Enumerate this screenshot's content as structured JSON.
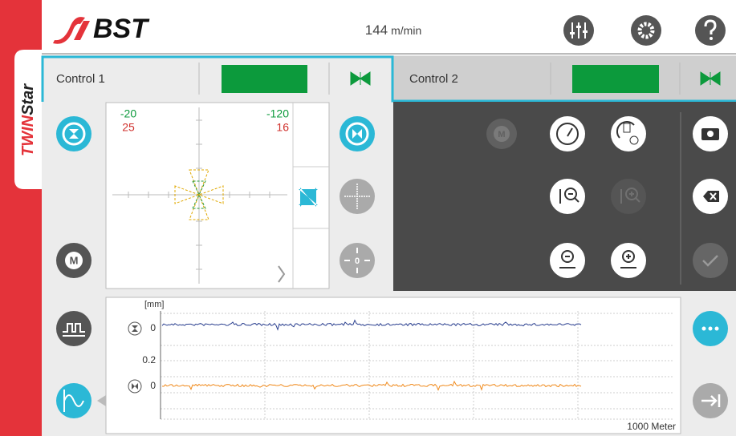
{
  "header": {
    "logo": "BST",
    "speed": "144",
    "speed_unit": "m/min"
  },
  "brand": {
    "part1": "TWIN",
    "part2": "Star"
  },
  "tabs": [
    "Control 1",
    "Control 2"
  ],
  "icons": {
    "motor": "M",
    "zero": "0"
  },
  "crosshair": {
    "left_top": "-20",
    "left_bottom": "25",
    "right_top": "-120",
    "right_bottom": "16"
  },
  "trend": {
    "unit": "[mm]",
    "upper_zero": "0",
    "scale": "0.2",
    "lower_zero": "0",
    "length": "1000 Meter"
  }
}
